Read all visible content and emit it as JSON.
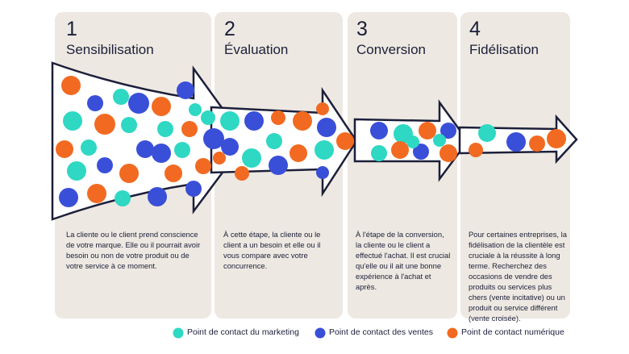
{
  "stages": [
    {
      "number": "1",
      "title": "Sensibilisation",
      "text": "La cliente ou le client prend conscience de votre marque. Elle ou il pourrait avoir besoin ou non de votre produit ou de votre service à ce moment."
    },
    {
      "number": "2",
      "title": "Évaluation",
      "text": "À cette étape, la cliente ou le client a un besoin et elle ou il vous compare avec votre concurrence."
    },
    {
      "number": "3",
      "title": "Conversion",
      "text": "À l'étape de la conversion, la cliente ou le client a effectué l'achat. Il est crucial qu'elle ou il ait une bonne expérience à l'achat et après."
    },
    {
      "number": "4",
      "title": "Fidélisation",
      "text": "Pour certaines entreprises, la fidélisation de la clientèle est cruciale à la réussite à long terme. Recherchez des occasions de vendre des produits ou services plus chers (vente incitative) ou un produit ou service différent (vente croisée)."
    }
  ],
  "legend": [
    "Point de contact du marketing",
    "Point de contact des ventes",
    "Point de contact numérique"
  ]
}
